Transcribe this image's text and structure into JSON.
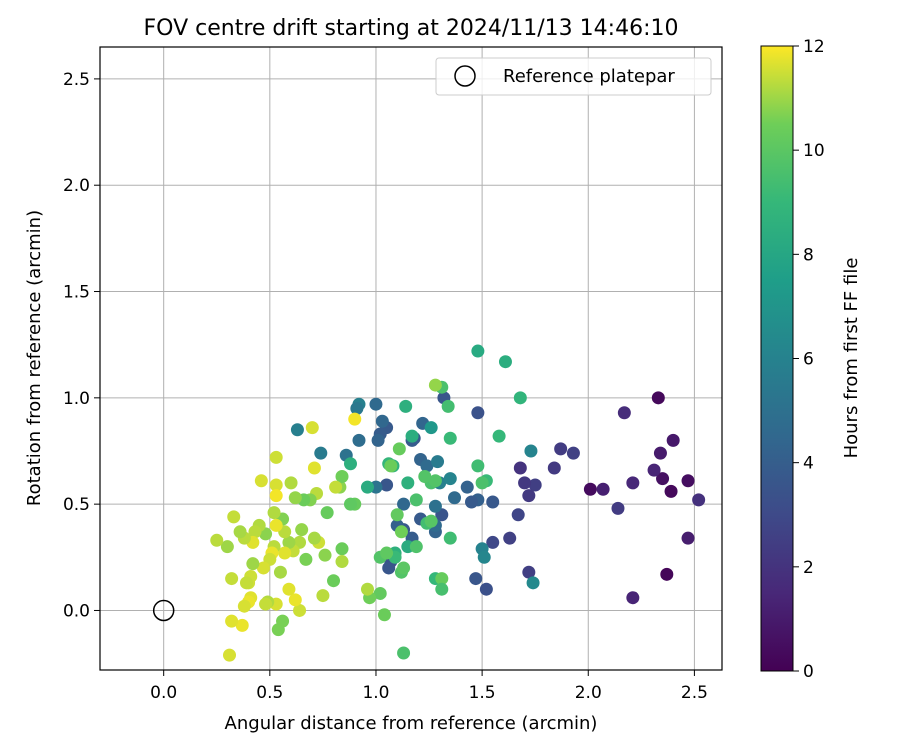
{
  "chart_data": {
    "type": "scatter",
    "title": "FOV centre drift starting at 2024/11/13 14:46:10",
    "xlabel": "Angular distance from reference (arcmin)",
    "ylabel": "Rotation from reference (arcmin)",
    "xlim": [
      -0.3,
      2.63
    ],
    "ylim": [
      -0.28,
      2.65
    ],
    "xticks": [
      0.0,
      0.5,
      1.0,
      1.5,
      2.0,
      2.5
    ],
    "yticks": [
      0.0,
      0.5,
      1.0,
      1.5,
      2.0,
      2.5
    ],
    "xtick_labels": [
      "0.0",
      "0.5",
      "1.0",
      "1.5",
      "2.0",
      "2.5"
    ],
    "ytick_labels": [
      "0.0",
      "0.5",
      "1.0",
      "1.5",
      "2.0",
      "2.5"
    ],
    "grid": true,
    "legend": {
      "position": "top-right",
      "entries": [
        "Reference platepar"
      ]
    },
    "reference_point": {
      "x": 0.0,
      "y": 0.0
    },
    "colorbar": {
      "label": "Hours from first FF file",
      "colormap": "viridis",
      "range": [
        0,
        12
      ],
      "ticks": [
        0,
        2,
        4,
        6,
        8,
        10,
        12
      ],
      "tick_labels": [
        "0",
        "2",
        "4",
        "6",
        "8",
        "10",
        "12"
      ]
    },
    "points": [
      {
        "x": 2.01,
        "y": 0.57,
        "c": 0.4
      },
      {
        "x": 2.07,
        "y": 0.57,
        "c": 1.2
      },
      {
        "x": 2.21,
        "y": 0.6,
        "c": 1.5
      },
      {
        "x": 2.21,
        "y": 0.06,
        "c": 1.4
      },
      {
        "x": 2.37,
        "y": 0.17,
        "c": 0.2
      },
      {
        "x": 2.39,
        "y": 0.56,
        "c": 0.3
      },
      {
        "x": 2.4,
        "y": 0.8,
        "c": 0.9
      },
      {
        "x": 2.33,
        "y": 1.0,
        "c": 0.3
      },
      {
        "x": 2.35,
        "y": 0.62,
        "c": 0.6
      },
      {
        "x": 2.34,
        "y": 0.74,
        "c": 1.0
      },
      {
        "x": 2.31,
        "y": 0.66,
        "c": 1.4
      },
      {
        "x": 2.47,
        "y": 0.61,
        "c": 0.5
      },
      {
        "x": 2.47,
        "y": 0.34,
        "c": 1.1
      },
      {
        "x": 2.52,
        "y": 0.52,
        "c": 1.9
      },
      {
        "x": 2.17,
        "y": 0.93,
        "c": 1.7
      },
      {
        "x": 2.14,
        "y": 0.48,
        "c": 2.4
      },
      {
        "x": 1.93,
        "y": 0.74,
        "c": 2.6
      },
      {
        "x": 1.87,
        "y": 0.76,
        "c": 2.4
      },
      {
        "x": 1.84,
        "y": 0.67,
        "c": 2.3
      },
      {
        "x": 1.75,
        "y": 0.59,
        "c": 2.5
      },
      {
        "x": 1.7,
        "y": 0.6,
        "c": 2.2
      },
      {
        "x": 1.68,
        "y": 0.67,
        "c": 2.0
      },
      {
        "x": 1.72,
        "y": 0.54,
        "c": 2.3
      },
      {
        "x": 1.72,
        "y": 0.18,
        "c": 2.5
      },
      {
        "x": 1.67,
        "y": 0.45,
        "c": 2.8
      },
      {
        "x": 1.63,
        "y": 0.34,
        "c": 2.6
      },
      {
        "x": 1.55,
        "y": 0.32,
        "c": 2.9
      },
      {
        "x": 1.52,
        "y": 0.1,
        "c": 3.3
      },
      {
        "x": 1.47,
        "y": 0.15,
        "c": 3.6
      },
      {
        "x": 1.55,
        "y": 0.51,
        "c": 3.7
      },
      {
        "x": 1.48,
        "y": 0.93,
        "c": 3.4
      },
      {
        "x": 1.48,
        "y": 0.52,
        "c": 4.1
      },
      {
        "x": 1.45,
        "y": 0.51,
        "c": 3.8
      },
      {
        "x": 1.43,
        "y": 0.58,
        "c": 4.2
      },
      {
        "x": 1.37,
        "y": 0.53,
        "c": 4.6
      },
      {
        "x": 1.32,
        "y": 1.0,
        "c": 3.6
      },
      {
        "x": 1.31,
        "y": 0.45,
        "c": 3.5
      },
      {
        "x": 1.28,
        "y": 0.37,
        "c": 4.3
      },
      {
        "x": 1.28,
        "y": 0.4,
        "c": 4.7
      },
      {
        "x": 1.28,
        "y": 0.49,
        "c": 5.0
      },
      {
        "x": 1.22,
        "y": 0.88,
        "c": 4.4
      },
      {
        "x": 1.18,
        "y": 0.81,
        "c": 3.7
      },
      {
        "x": 1.17,
        "y": 0.8,
        "c": 3.9
      },
      {
        "x": 1.21,
        "y": 0.71,
        "c": 4.3
      },
      {
        "x": 1.24,
        "y": 0.68,
        "c": 4.7
      },
      {
        "x": 1.21,
        "y": 0.43,
        "c": 3.8
      },
      {
        "x": 1.17,
        "y": 0.34,
        "c": 3.9
      },
      {
        "x": 1.13,
        "y": 0.38,
        "c": 3.7
      },
      {
        "x": 1.1,
        "y": 0.4,
        "c": 4.1
      },
      {
        "x": 1.13,
        "y": 0.5,
        "c": 4.5
      },
      {
        "x": 1.07,
        "y": 0.23,
        "c": 3.5
      },
      {
        "x": 1.06,
        "y": 0.2,
        "c": 3.6
      },
      {
        "x": 1.05,
        "y": 0.59,
        "c": 3.6
      },
      {
        "x": 1.05,
        "y": 0.86,
        "c": 3.8
      },
      {
        "x": 1.02,
        "y": 0.83,
        "c": 3.9
      },
      {
        "x": 1.01,
        "y": 0.8,
        "c": 4.3
      },
      {
        "x": 1.03,
        "y": 0.89,
        "c": 4.5
      },
      {
        "x": 1.0,
        "y": 0.97,
        "c": 4.6
      },
      {
        "x": 1.0,
        "y": 0.58,
        "c": 5.2
      },
      {
        "x": 0.92,
        "y": 0.8,
        "c": 4.8
      },
      {
        "x": 0.92,
        "y": 0.97,
        "c": 5.9
      },
      {
        "x": 0.91,
        "y": 0.95,
        "c": 5.4
      },
      {
        "x": 0.86,
        "y": 0.73,
        "c": 5.1
      },
      {
        "x": 0.74,
        "y": 0.74,
        "c": 5.6
      },
      {
        "x": 0.63,
        "y": 0.85,
        "c": 5.8
      },
      {
        "x": 1.29,
        "y": 0.7,
        "c": 5.6
      },
      {
        "x": 1.3,
        "y": 0.6,
        "c": 5.9
      },
      {
        "x": 1.35,
        "y": 0.62,
        "c": 6.1
      },
      {
        "x": 1.5,
        "y": 0.29,
        "c": 6.0
      },
      {
        "x": 1.51,
        "y": 0.25,
        "c": 6.2
      },
      {
        "x": 1.73,
        "y": 0.75,
        "c": 6.1
      },
      {
        "x": 1.74,
        "y": 0.13,
        "c": 6.4
      },
      {
        "x": 1.26,
        "y": 0.86,
        "c": 7.2
      },
      {
        "x": 1.17,
        "y": 0.82,
        "c": 8.4
      },
      {
        "x": 1.14,
        "y": 0.96,
        "c": 8.5
      },
      {
        "x": 1.08,
        "y": 0.68,
        "c": 8.7
      },
      {
        "x": 1.06,
        "y": 0.69,
        "c": 8.9
      },
      {
        "x": 1.15,
        "y": 0.3,
        "c": 8.3
      },
      {
        "x": 1.15,
        "y": 0.6,
        "c": 8.6
      },
      {
        "x": 1.09,
        "y": 0.27,
        "c": 8.6
      },
      {
        "x": 1.09,
        "y": 0.25,
        "c": 9.1
      },
      {
        "x": 0.96,
        "y": 0.58,
        "c": 8.3
      },
      {
        "x": 0.88,
        "y": 0.69,
        "c": 8.5
      },
      {
        "x": 1.48,
        "y": 1.22,
        "c": 8.2
      },
      {
        "x": 1.61,
        "y": 1.17,
        "c": 8.4
      },
      {
        "x": 1.68,
        "y": 1.0,
        "c": 8.8
      },
      {
        "x": 1.58,
        "y": 0.82,
        "c": 9.0
      },
      {
        "x": 1.48,
        "y": 0.68,
        "c": 9.3
      },
      {
        "x": 1.52,
        "y": 0.61,
        "c": 9.1
      },
      {
        "x": 1.5,
        "y": 0.6,
        "c": 9.6
      },
      {
        "x": 1.35,
        "y": 0.81,
        "c": 9.1
      },
      {
        "x": 1.34,
        "y": 0.96,
        "c": 9.4
      },
      {
        "x": 1.31,
        "y": 1.05,
        "c": 9.6
      },
      {
        "x": 1.28,
        "y": 1.06,
        "c": 10.9
      },
      {
        "x": 1.26,
        "y": 0.6,
        "c": 9.6
      },
      {
        "x": 1.28,
        "y": 0.61,
        "c": 9.8
      },
      {
        "x": 1.23,
        "y": 0.63,
        "c": 9.8
      },
      {
        "x": 1.19,
        "y": 0.52,
        "c": 9.6
      },
      {
        "x": 1.24,
        "y": 0.41,
        "c": 9.4
      },
      {
        "x": 1.26,
        "y": 0.42,
        "c": 9.9
      },
      {
        "x": 1.35,
        "y": 0.34,
        "c": 9.3
      },
      {
        "x": 1.28,
        "y": 0.15,
        "c": 9.0
      },
      {
        "x": 1.31,
        "y": 0.15,
        "c": 10.3
      },
      {
        "x": 1.31,
        "y": 0.1,
        "c": 9.5
      },
      {
        "x": 1.19,
        "y": 0.3,
        "c": 9.7
      },
      {
        "x": 1.12,
        "y": 0.18,
        "c": 9.8
      },
      {
        "x": 1.13,
        "y": 0.2,
        "c": 10.0
      },
      {
        "x": 1.13,
        "y": -0.2,
        "c": 9.6
      },
      {
        "x": 1.04,
        "y": -0.02,
        "c": 10.4
      },
      {
        "x": 1.02,
        "y": 0.08,
        "c": 10.2
      },
      {
        "x": 1.02,
        "y": 0.25,
        "c": 9.8
      },
      {
        "x": 1.05,
        "y": 0.27,
        "c": 10.1
      },
      {
        "x": 1.1,
        "y": 0.45,
        "c": 10.2
      },
      {
        "x": 1.12,
        "y": 0.37,
        "c": 10.5
      },
      {
        "x": 1.11,
        "y": 0.76,
        "c": 10.3
      },
      {
        "x": 1.07,
        "y": 0.68,
        "c": 10.4
      },
      {
        "x": 0.97,
        "y": 0.06,
        "c": 10.5
      },
      {
        "x": 0.96,
        "y": 0.1,
        "c": 11.2
      },
      {
        "x": 0.9,
        "y": 0.5,
        "c": 10.3
      },
      {
        "x": 0.88,
        "y": 0.5,
        "c": 10.1
      },
      {
        "x": 0.83,
        "y": 0.58,
        "c": 10.8
      },
      {
        "x": 0.84,
        "y": 0.63,
        "c": 10.5
      },
      {
        "x": 0.84,
        "y": 0.29,
        "c": 10.4
      },
      {
        "x": 0.9,
        "y": 0.9,
        "c": 11.9
      },
      {
        "x": 0.81,
        "y": 0.58,
        "c": 11.4
      },
      {
        "x": 0.77,
        "y": 0.46,
        "c": 10.3
      },
      {
        "x": 0.8,
        "y": 0.14,
        "c": 10.4
      },
      {
        "x": 0.84,
        "y": 0.23,
        "c": 11.2
      },
      {
        "x": 0.76,
        "y": 0.26,
        "c": 10.8
      },
      {
        "x": 0.75,
        "y": 0.07,
        "c": 11.3
      },
      {
        "x": 0.73,
        "y": 0.32,
        "c": 11.5
      },
      {
        "x": 0.71,
        "y": 0.34,
        "c": 11.1
      },
      {
        "x": 0.72,
        "y": 0.55,
        "c": 11.3
      },
      {
        "x": 0.71,
        "y": 0.67,
        "c": 11.7
      },
      {
        "x": 0.7,
        "y": 0.86,
        "c": 11.6
      },
      {
        "x": 0.69,
        "y": 0.52,
        "c": 10.7
      },
      {
        "x": 0.67,
        "y": 0.24,
        "c": 10.6
      },
      {
        "x": 0.66,
        "y": 0.52,
        "c": 10.4
      },
      {
        "x": 0.65,
        "y": 0.38,
        "c": 10.9
      },
      {
        "x": 0.64,
        "y": 0.32,
        "c": 11.2
      },
      {
        "x": 0.64,
        "y": 0.0,
        "c": 11.5
      },
      {
        "x": 0.62,
        "y": 0.53,
        "c": 10.9
      },
      {
        "x": 0.6,
        "y": 0.6,
        "c": 11.2
      },
      {
        "x": 0.61,
        "y": 0.28,
        "c": 11.4
      },
      {
        "x": 0.62,
        "y": 0.05,
        "c": 11.8
      },
      {
        "x": 0.59,
        "y": 0.1,
        "c": 11.7
      },
      {
        "x": 0.59,
        "y": 0.32,
        "c": 11.0
      },
      {
        "x": 0.57,
        "y": 0.37,
        "c": 11.3
      },
      {
        "x": 0.56,
        "y": 0.43,
        "c": 10.7
      },
      {
        "x": 0.57,
        "y": 0.27,
        "c": 11.7
      },
      {
        "x": 0.56,
        "y": -0.05,
        "c": 10.6
      },
      {
        "x": 0.54,
        "y": -0.09,
        "c": 10.6
      },
      {
        "x": 0.55,
        "y": 0.18,
        "c": 11.1
      },
      {
        "x": 0.53,
        "y": 0.59,
        "c": 11.6
      },
      {
        "x": 0.53,
        "y": 0.54,
        "c": 11.9
      },
      {
        "x": 0.53,
        "y": 0.72,
        "c": 11.5
      },
      {
        "x": 0.53,
        "y": 0.4,
        "c": 11.8
      },
      {
        "x": 0.52,
        "y": 0.3,
        "c": 11.3
      },
      {
        "x": 0.51,
        "y": 0.27,
        "c": 11.8
      },
      {
        "x": 0.52,
        "y": 0.46,
        "c": 11.2
      },
      {
        "x": 0.5,
        "y": 0.24,
        "c": 11.5
      },
      {
        "x": 0.53,
        "y": 0.03,
        "c": 11.6
      },
      {
        "x": 0.49,
        "y": 0.04,
        "c": 11.2
      },
      {
        "x": 0.48,
        "y": 0.03,
        "c": 11.4
      },
      {
        "x": 0.48,
        "y": 0.36,
        "c": 10.8
      },
      {
        "x": 0.47,
        "y": 0.2,
        "c": 11.6
      },
      {
        "x": 0.46,
        "y": 0.61,
        "c": 11.6
      },
      {
        "x": 0.45,
        "y": 0.4,
        "c": 11.2
      },
      {
        "x": 0.43,
        "y": 0.37,
        "c": 11.3
      },
      {
        "x": 0.42,
        "y": 0.22,
        "c": 11.0
      },
      {
        "x": 0.42,
        "y": 0.32,
        "c": 11.7
      },
      {
        "x": 0.41,
        "y": 0.16,
        "c": 11.5
      },
      {
        "x": 0.4,
        "y": 0.13,
        "c": 11.5
      },
      {
        "x": 0.41,
        "y": 0.06,
        "c": 11.7
      },
      {
        "x": 0.4,
        "y": 0.04,
        "c": 11.8
      },
      {
        "x": 0.39,
        "y": 0.13,
        "c": 11.4
      },
      {
        "x": 0.38,
        "y": 0.34,
        "c": 11.3
      },
      {
        "x": 0.38,
        "y": 0.02,
        "c": 11.6
      },
      {
        "x": 0.37,
        "y": -0.07,
        "c": 11.8
      },
      {
        "x": 0.36,
        "y": 0.37,
        "c": 11.1
      },
      {
        "x": 0.33,
        "y": 0.44,
        "c": 11.4
      },
      {
        "x": 0.32,
        "y": 0.15,
        "c": 11.4
      },
      {
        "x": 0.32,
        "y": -0.05,
        "c": 11.7
      },
      {
        "x": 0.31,
        "y": -0.21,
        "c": 11.6
      },
      {
        "x": 0.3,
        "y": 0.3,
        "c": 11.0
      },
      {
        "x": 0.25,
        "y": 0.33,
        "c": 11.3
      }
    ]
  }
}
